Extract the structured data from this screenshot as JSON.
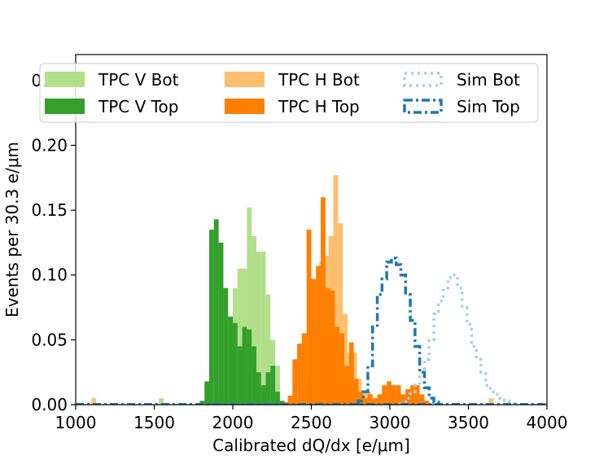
{
  "chart_data": {
    "type": "histogram",
    "xlabel": "Calibrated dQ/dx [e/μm]",
    "ylabel": "Events per 30.3 e/μm",
    "xlim": [
      1000,
      4000
    ],
    "ylim": [
      0,
      0.27
    ],
    "bin_width": 30.3,
    "x_ticks": [
      "1000",
      "1500",
      "2000",
      "2500",
      "3000",
      "3500",
      "4000"
    ],
    "y_ticks": [
      "0.00",
      "0.05",
      "0.10",
      "0.15",
      "0.20",
      "0.25"
    ],
    "legend_position": "top",
    "legend_columns": 3,
    "series": [
      {
        "name": "TPC V Bot",
        "style": "filled",
        "color": "#b2df8a",
        "x": [
          1545,
          1925,
          1955,
          1985,
          2015,
          2045,
          2075,
          2105,
          2135,
          2165,
          2195,
          2225,
          2255,
          2285
        ],
        "y": [
          0.005,
          0.01,
          0.02,
          0.06,
          0.09,
          0.105,
          0.105,
          0.152,
          0.13,
          0.118,
          0.118,
          0.085,
          0.05,
          0.03
        ]
      },
      {
        "name": "TPC V Top",
        "style": "filled",
        "color": "#33a02c",
        "x": [
          1805,
          1835,
          1865,
          1895,
          1925,
          1955,
          1985,
          2015,
          2045,
          2075,
          2105,
          2135,
          2165,
          2195,
          2225,
          2255,
          2285,
          2315
        ],
        "y": [
          0.003,
          0.018,
          0.135,
          0.143,
          0.125,
          0.09,
          0.068,
          0.063,
          0.045,
          0.06,
          0.058,
          0.045,
          0.025,
          0.015,
          0.025,
          0.03,
          0.01,
          0.003
        ]
      },
      {
        "name": "TPC H Bot",
        "style": "filled",
        "color": "#fdbf6f",
        "x": [
          1115,
          2475,
          2505,
          2535,
          2565,
          2595,
          2625,
          2655,
          2685,
          2715,
          2745,
          2775,
          2805,
          2835,
          2865,
          2895,
          3645
        ],
        "y": [
          0.005,
          0.02,
          0.04,
          0.07,
          0.11,
          0.115,
          0.13,
          0.177,
          0.14,
          0.07,
          0.04,
          0.04,
          0.02,
          0.01,
          0.01,
          0.005,
          0.005
        ]
      },
      {
        "name": "TPC H Top",
        "style": "filled",
        "color": "#ff7f00",
        "x": [
          2335,
          2365,
          2395,
          2425,
          2455,
          2485,
          2515,
          2545,
          2575,
          2605,
          2635,
          2665,
          2695,
          2725,
          2755,
          2785,
          2815,
          2845,
          2875,
          2905,
          2935,
          2965,
          2995,
          3025,
          3055,
          3085,
          3115,
          3145,
          3175,
          3205,
          3235
        ],
        "y": [
          0.002,
          0.007,
          0.035,
          0.047,
          0.055,
          0.135,
          0.097,
          0.107,
          0.16,
          0.09,
          0.088,
          0.06,
          0.055,
          0.03,
          0.048,
          0.02,
          0.01,
          0.005,
          0.008,
          0.005,
          0.008,
          0.015,
          0.018,
          0.015,
          0.015,
          0.008,
          0.012,
          0.015,
          0.015,
          0.008,
          0.003
        ]
      },
      {
        "name": "Sim Bot",
        "style": "dotted",
        "color": "#a6cee3",
        "x": [
          3085,
          3115,
          3145,
          3175,
          3205,
          3235,
          3265,
          3295,
          3325,
          3355,
          3385,
          3415,
          3445,
          3475,
          3505,
          3535,
          3565,
          3595,
          3625,
          3655,
          3685,
          3715,
          3745,
          3775,
          3805
        ],
        "y": [
          0.002,
          0.005,
          0.01,
          0.015,
          0.025,
          0.035,
          0.05,
          0.07,
          0.08,
          0.09,
          0.098,
          0.1,
          0.09,
          0.075,
          0.062,
          0.045,
          0.035,
          0.025,
          0.015,
          0.01,
          0.008,
          0.005,
          0.003,
          0.002,
          0.001
        ]
      },
      {
        "name": "Sim Top",
        "style": "dashdot",
        "color": "#1f78b4",
        "x": [
          2815,
          2845,
          2875,
          2905,
          2935,
          2965,
          2995,
          3025,
          3055,
          3085,
          3115,
          3145,
          3175,
          3205,
          3235,
          3265,
          3295
        ],
        "y": [
          0.003,
          0.01,
          0.03,
          0.06,
          0.085,
          0.097,
          0.11,
          0.113,
          0.108,
          0.1,
          0.085,
          0.065,
          0.045,
          0.025,
          0.013,
          0.005,
          0.002
        ]
      }
    ]
  }
}
